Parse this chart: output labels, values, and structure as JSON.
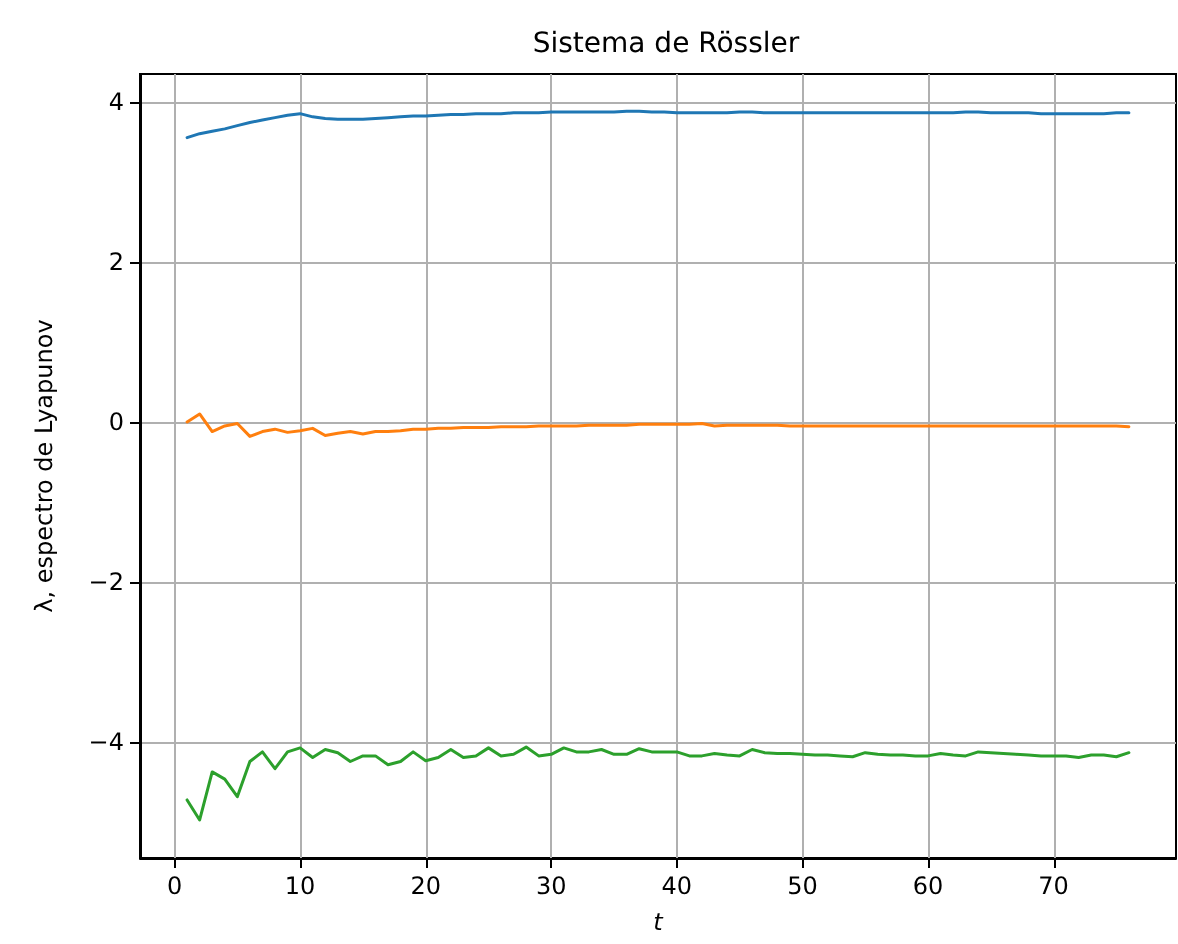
{
  "chart_data": {
    "type": "line",
    "title": "Sistema de Rössler",
    "xlabel": "t",
    "ylabel": "λ, espectro de Lyapunov",
    "x": [
      1,
      2,
      3,
      4,
      5,
      6,
      7,
      8,
      9,
      10,
      11,
      12,
      13,
      14,
      15,
      16,
      17,
      18,
      19,
      20,
      21,
      22,
      23,
      24,
      25,
      26,
      27,
      28,
      29,
      30,
      31,
      32,
      33,
      34,
      35,
      36,
      37,
      38,
      39,
      40,
      41,
      42,
      43,
      44,
      45,
      46,
      47,
      48,
      49,
      50,
      51,
      52,
      53,
      54,
      55,
      56,
      57,
      58,
      59,
      60,
      61,
      62,
      63,
      64,
      65,
      66,
      67,
      68,
      69,
      70,
      71,
      72,
      73,
      74,
      75,
      76
    ],
    "series": [
      {
        "color": "#1f77b4",
        "values": [
          3.55,
          3.6,
          3.63,
          3.66,
          3.7,
          3.74,
          3.77,
          3.8,
          3.83,
          3.85,
          3.81,
          3.79,
          3.78,
          3.78,
          3.78,
          3.79,
          3.8,
          3.81,
          3.82,
          3.82,
          3.83,
          3.84,
          3.84,
          3.85,
          3.85,
          3.85,
          3.86,
          3.86,
          3.86,
          3.87,
          3.87,
          3.87,
          3.87,
          3.87,
          3.87,
          3.88,
          3.88,
          3.87,
          3.87,
          3.86,
          3.86,
          3.86,
          3.86,
          3.86,
          3.87,
          3.87,
          3.86,
          3.86,
          3.86,
          3.86,
          3.86,
          3.86,
          3.86,
          3.86,
          3.86,
          3.86,
          3.86,
          3.86,
          3.86,
          3.86,
          3.86,
          3.86,
          3.87,
          3.87,
          3.86,
          3.86,
          3.86,
          3.86,
          3.85,
          3.85,
          3.85,
          3.85,
          3.85,
          3.85,
          3.86,
          3.86
        ]
      },
      {
        "color": "#ff7f0e",
        "values": [
          0.0,
          0.1,
          -0.12,
          -0.05,
          -0.02,
          -0.18,
          -0.12,
          -0.09,
          -0.13,
          -0.11,
          -0.08,
          -0.17,
          -0.14,
          -0.12,
          -0.15,
          -0.12,
          -0.12,
          -0.11,
          -0.09,
          -0.09,
          -0.08,
          -0.08,
          -0.07,
          -0.07,
          -0.07,
          -0.06,
          -0.06,
          -0.06,
          -0.05,
          -0.05,
          -0.05,
          -0.05,
          -0.04,
          -0.04,
          -0.04,
          -0.04,
          -0.03,
          -0.03,
          -0.03,
          -0.03,
          -0.03,
          -0.02,
          -0.05,
          -0.04,
          -0.04,
          -0.04,
          -0.04,
          -0.04,
          -0.05,
          -0.05,
          -0.05,
          -0.05,
          -0.05,
          -0.05,
          -0.05,
          -0.05,
          -0.05,
          -0.05,
          -0.05,
          -0.05,
          -0.05,
          -0.05,
          -0.05,
          -0.05,
          -0.05,
          -0.05,
          -0.05,
          -0.05,
          -0.05,
          -0.05,
          -0.05,
          -0.05,
          -0.05,
          -0.05,
          -0.05,
          -0.06
        ]
      },
      {
        "color": "#2ca02c",
        "values": [
          -4.72,
          -4.97,
          -4.37,
          -4.46,
          -4.68,
          -4.24,
          -4.12,
          -4.33,
          -4.12,
          -4.07,
          -4.19,
          -4.09,
          -4.13,
          -4.24,
          -4.17,
          -4.17,
          -4.28,
          -4.24,
          -4.12,
          -4.23,
          -4.19,
          -4.09,
          -4.19,
          -4.17,
          -4.07,
          -4.17,
          -4.15,
          -4.06,
          -4.17,
          -4.15,
          -4.07,
          -4.12,
          -4.12,
          -4.09,
          -4.15,
          -4.15,
          -4.08,
          -4.12,
          -4.12,
          -4.12,
          -4.17,
          -4.17,
          -4.14,
          -4.16,
          -4.17,
          -4.09,
          -4.13,
          -4.14,
          -4.14,
          -4.15,
          -4.16,
          -4.16,
          -4.17,
          -4.18,
          -4.13,
          -4.15,
          -4.16,
          -4.16,
          -4.17,
          -4.17,
          -4.14,
          -4.16,
          -4.17,
          -4.12,
          -4.13,
          -4.14,
          -4.15,
          -4.16,
          -4.17,
          -4.17,
          -4.17,
          -4.19,
          -4.16,
          -4.16,
          -4.18,
          -4.13
        ]
      }
    ],
    "xlim": [
      -2.75,
      79.75
    ],
    "xticks": [
      0,
      10,
      20,
      30,
      40,
      50,
      60,
      70
    ],
    "ylim": [
      -5.445,
      4.345
    ],
    "yticks": [
      -4,
      -2,
      0,
      2,
      4
    ],
    "grid": true,
    "marker": "none",
    "line_style": "solid"
  }
}
